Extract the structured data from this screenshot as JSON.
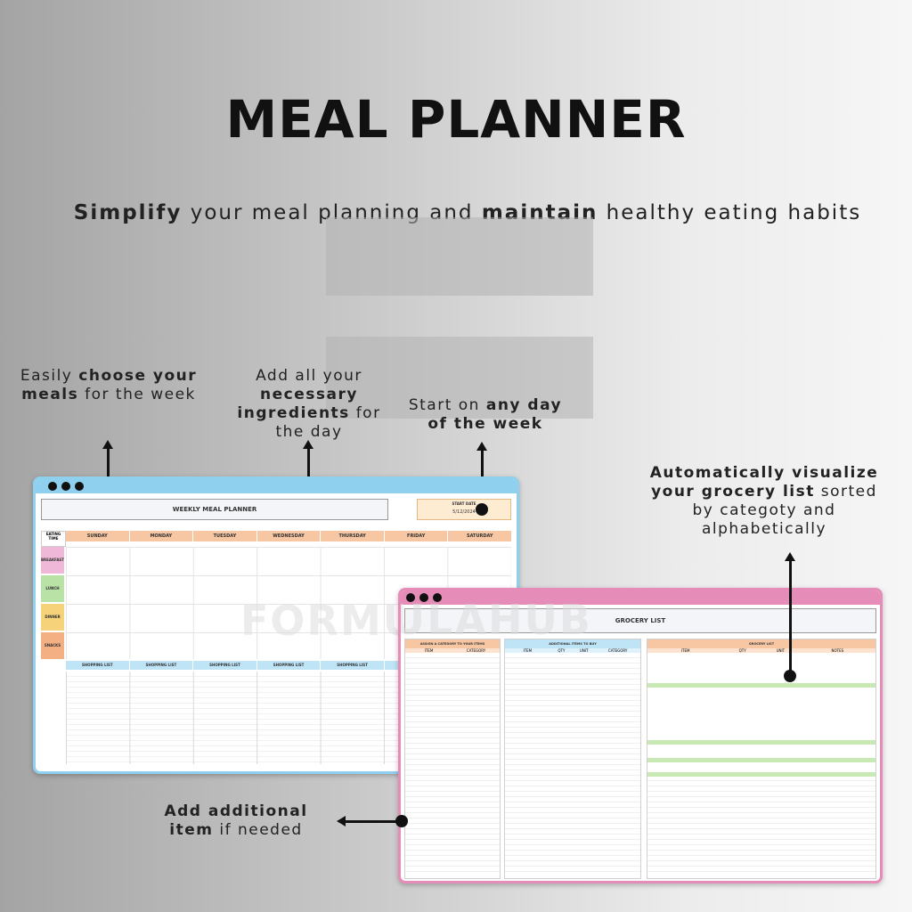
{
  "title": "MEAL PLANNER",
  "subtitle": {
    "bold1": "Simplify",
    "text1": " your meal planning and ",
    "bold2": "maintain",
    "text2": " healthy eating habits"
  },
  "annotations": {
    "choose_meals": {
      "pre": "Easily ",
      "bold": "choose your meals",
      "post": " for the week"
    },
    "ingredients": {
      "pre": "Add all your ",
      "bold": "necessary ingredients",
      "post": " for the day"
    },
    "start_day": {
      "pre": "Start on ",
      "bold": "any day of the week",
      "post": ""
    },
    "grocery": {
      "bold": "Automatically visualize your grocery list",
      "post": " sorted by categoty and alphabetically"
    },
    "additional": {
      "bold": "Add additional",
      "bold2": "item",
      "post": " if needed"
    }
  },
  "weekly_planner": {
    "header": "WEEKLY MEAL PLANNER",
    "start_date_label": "START DATE",
    "start_date": "5/12/2024",
    "eating_time": "EATING TIME",
    "days": [
      "SUNDAY",
      "MONDAY",
      "TUESDAY",
      "WEDNESDAY",
      "THURSDAY",
      "FRIDAY",
      "SATURDAY"
    ],
    "meals": [
      "BREAKFAST",
      "LUNCH",
      "DINNER",
      "SNACKS"
    ],
    "shopping_list": "SHOPPING LIST",
    "colors": {
      "frame": "#8fd0ef",
      "day_header": "#f7c7a3",
      "breakfast": "#f0b8d8",
      "lunch": "#b9e3a6",
      "dinner": "#f6d27a",
      "snacks": "#f3b083",
      "shopping": "#bfe4f6"
    }
  },
  "grocery_window": {
    "header": "GROCERY LIST",
    "assign_header": "ASSIGN A CATEGORY TO YOUR ITEMS",
    "additional_header": "ADDITIONAL ITEMS TO BUY",
    "grocery_header": "GROCERY LIST",
    "item_col": "ITEM",
    "category_col": "CATEGORY",
    "qty_col": "QTY",
    "unit_col": "UNIT",
    "notes_col": "NOTES",
    "colors": {
      "frame": "#e58db8",
      "assign": "#f7c7a3",
      "additional": "#bfe4f6",
      "grocery": "#f7c7a3",
      "highlight": "#c9e9b4"
    }
  },
  "watermark": "FORMULAHUB"
}
